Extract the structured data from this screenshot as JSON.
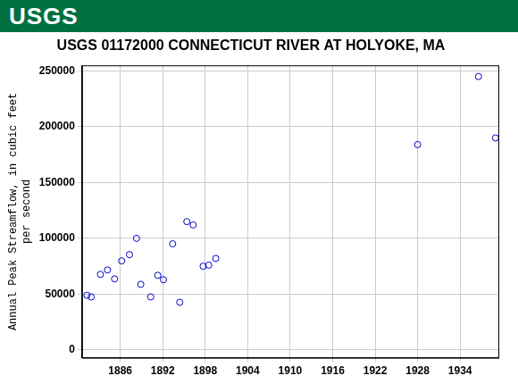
{
  "chart_data": {
    "type": "scatter",
    "header": "USGS",
    "title": "USGS 01172000 CONNECTICUT RIVER AT HOLYOKE, MA",
    "y_label": [
      "Annual Peak Streamflow, in cubic feet",
      "per second"
    ],
    "x": [
      1881.3,
      1881.9,
      1883.2,
      1884.2,
      1885.2,
      1886.2,
      1887.3,
      1888.3,
      1888.9,
      1890.3,
      1891.3,
      1892.1,
      1893.4,
      1894.4,
      1895.4,
      1896.3,
      1897.7,
      1898.5,
      1899.5,
      1928.0,
      1936.6,
      1939.0
    ],
    "values": [
      49000,
      47500,
      67700,
      71700,
      63700,
      79800,
      85400,
      100000,
      58800,
      47500,
      66900,
      62900,
      95100,
      42700,
      115000,
      112000,
      75000,
      76000,
      82000,
      184000,
      245000,
      190000
    ],
    "color": "#0000cc",
    "marker": "circle_open",
    "xlim": [
      1880.6,
      1939.4
    ],
    "xticks": [
      1886,
      1892,
      1898,
      1904,
      1910,
      1916,
      1922,
      1928,
      1934
    ],
    "ylim": [
      -7000,
      255000
    ],
    "yticks": [
      0,
      50000,
      100000,
      150000,
      200000,
      250000
    ],
    "grid": true
  }
}
